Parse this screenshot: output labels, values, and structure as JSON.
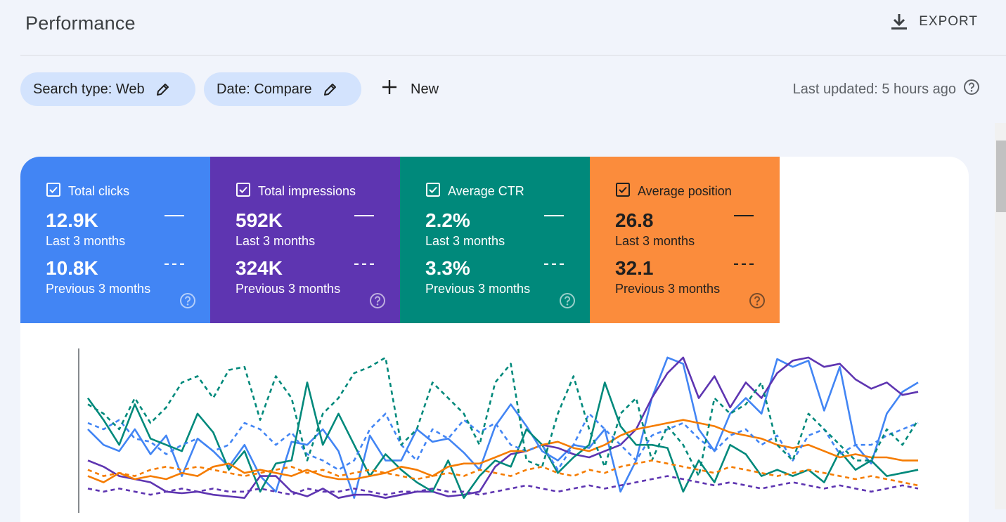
{
  "header": {
    "title": "Performance",
    "export_label": "EXPORT"
  },
  "filters": {
    "search_type": "Search type: Web",
    "date": "Date: Compare",
    "new_label": "New",
    "last_updated": "Last updated: 5 hours ago"
  },
  "metrics": [
    {
      "label": "Total clicks",
      "value": "12.9K",
      "period": "Last 3 months",
      "compare_value": "10.8K",
      "compare_period": "Previous 3 months",
      "color": "#4285f4",
      "checked": true
    },
    {
      "label": "Total impressions",
      "value": "592K",
      "period": "Last 3 months",
      "compare_value": "324K",
      "compare_period": "Previous 3 months",
      "color": "#5e35b1",
      "checked": true
    },
    {
      "label": "Average CTR",
      "value": "2.2%",
      "period": "Last 3 months",
      "compare_value": "3.3%",
      "compare_period": "Previous 3 months",
      "color": "#00897b",
      "checked": true
    },
    {
      "label": "Average position",
      "value": "26.8",
      "period": "Last 3 months",
      "compare_value": "32.1",
      "compare_period": "Previous 3 months",
      "color": "#fb8c3c",
      "checked": true
    }
  ],
  "chart_data": {
    "type": "line",
    "note_units": "relative height 0-1 of visible plot area",
    "x_count": 54,
    "series": [
      {
        "color": "#4285f4",
        "style": "solid",
        "values": [
          0.5,
          0.4,
          0.36,
          0.5,
          0.34,
          0.46,
          0.2,
          0.44,
          0.36,
          0.26,
          0.4,
          0.2,
          0.1,
          0.42,
          0.4,
          0.5,
          0.36,
          0.06,
          0.46,
          0.3,
          0.3,
          0.5,
          0.42,
          0.44,
          0.35,
          0.24,
          0.52,
          0.66,
          0.52,
          0.36,
          0.3,
          0.4,
          0.38,
          0.5,
          0.1,
          0.3,
          0.7,
          0.96,
          0.92,
          0.5,
          0.36,
          0.6,
          0.7,
          0.6,
          0.95,
          0.9,
          0.94,
          0.62,
          0.9,
          0.4,
          0.28,
          0.6,
          0.74,
          0.8
        ]
      },
      {
        "color": "#5e35b1",
        "style": "solid",
        "values": [
          0.3,
          0.26,
          0.2,
          0.18,
          0.16,
          0.1,
          0.09,
          0.1,
          0.08,
          0.07,
          0.06,
          0.2,
          0.2,
          0.1,
          0.07,
          0.12,
          0.06,
          0.08,
          0.08,
          0.06,
          0.08,
          0.1,
          0.1,
          0.07,
          0.08,
          0.1,
          0.26,
          0.34,
          0.36,
          0.4,
          0.38,
          0.34,
          0.32,
          0.36,
          0.4,
          0.5,
          0.7,
          0.86,
          0.96,
          0.7,
          0.84,
          0.64,
          0.8,
          0.7,
          0.86,
          0.94,
          0.96,
          0.9,
          0.92,
          0.82,
          0.76,
          0.8,
          0.72,
          0.74
        ]
      },
      {
        "color": "#00897b",
        "style": "solid",
        "values": [
          0.7,
          0.56,
          0.4,
          0.66,
          0.44,
          0.4,
          0.36,
          0.6,
          0.48,
          0.24,
          0.36,
          0.1,
          0.28,
          0.3,
          0.8,
          0.4,
          0.6,
          0.4,
          0.2,
          0.34,
          0.24,
          0.16,
          0.1,
          0.3,
          0.06,
          0.2,
          0.3,
          0.26,
          0.5,
          0.4,
          0.22,
          0.32,
          0.4,
          0.8,
          0.52,
          0.4,
          0.4,
          0.38,
          0.1,
          0.3,
          0.16,
          0.4,
          0.34,
          0.2,
          0.24,
          0.2,
          0.24,
          0.16,
          0.36,
          0.24,
          0.3,
          0.2,
          0.22,
          0.24
        ]
      },
      {
        "color": "#f57c00",
        "style": "solid",
        "values": [
          0.2,
          0.16,
          0.22,
          0.18,
          0.2,
          0.18,
          0.22,
          0.2,
          0.26,
          0.28,
          0.22,
          0.24,
          0.22,
          0.2,
          0.24,
          0.2,
          0.18,
          0.18,
          0.2,
          0.22,
          0.26,
          0.24,
          0.2,
          0.26,
          0.28,
          0.28,
          0.32,
          0.36,
          0.36,
          0.4,
          0.42,
          0.38,
          0.36,
          0.4,
          0.46,
          0.5,
          0.52,
          0.54,
          0.56,
          0.54,
          0.52,
          0.48,
          0.46,
          0.44,
          0.4,
          0.38,
          0.4,
          0.36,
          0.32,
          0.34,
          0.32,
          0.32,
          0.3,
          0.3
        ]
      },
      {
        "color": "#4285f4",
        "style": "dashed",
        "values": [
          0.54,
          0.5,
          0.56,
          0.44,
          0.42,
          0.34,
          0.4,
          0.44,
          0.36,
          0.4,
          0.54,
          0.5,
          0.4,
          0.48,
          0.34,
          0.3,
          0.24,
          0.3,
          0.5,
          0.6,
          0.4,
          0.3,
          0.5,
          0.44,
          0.56,
          0.48,
          0.54,
          0.4,
          0.36,
          0.4,
          0.24,
          0.4,
          0.6,
          0.5,
          0.4,
          0.3,
          0.46,
          0.5,
          0.54,
          0.44,
          0.36,
          0.46,
          0.5,
          0.4,
          0.46,
          0.3,
          0.46,
          0.5,
          0.34,
          0.4,
          0.4,
          0.46,
          0.5,
          0.54
        ]
      },
      {
        "color": "#00897b",
        "style": "dashed",
        "values": [
          0.66,
          0.6,
          0.5,
          0.7,
          0.54,
          0.64,
          0.8,
          0.84,
          0.7,
          0.88,
          0.9,
          0.56,
          0.84,
          0.7,
          0.3,
          0.6,
          0.7,
          0.86,
          0.9,
          0.96,
          0.4,
          0.5,
          0.8,
          0.7,
          0.6,
          0.4,
          0.8,
          0.92,
          0.3,
          0.26,
          0.6,
          0.84,
          0.5,
          0.26,
          0.6,
          0.7,
          0.3,
          0.52,
          0.4,
          0.2,
          0.7,
          0.6,
          0.66,
          0.8,
          0.4,
          0.3,
          0.6,
          0.5,
          0.4,
          0.3,
          0.3,
          0.5,
          0.4,
          0.56
        ]
      },
      {
        "color": "#f57c00",
        "style": "dashed",
        "values": [
          0.24,
          0.2,
          0.22,
          0.2,
          0.24,
          0.26,
          0.24,
          0.26,
          0.24,
          0.22,
          0.2,
          0.22,
          0.24,
          0.26,
          0.22,
          0.24,
          0.2,
          0.22,
          0.24,
          0.22,
          0.2,
          0.18,
          0.2,
          0.22,
          0.2,
          0.24,
          0.22,
          0.2,
          0.24,
          0.26,
          0.22,
          0.2,
          0.24,
          0.22,
          0.26,
          0.28,
          0.3,
          0.28,
          0.26,
          0.24,
          0.22,
          0.26,
          0.24,
          0.22,
          0.2,
          0.22,
          0.24,
          0.22,
          0.2,
          0.18,
          0.2,
          0.18,
          0.16,
          0.14
        ]
      },
      {
        "color": "#5e35b1",
        "style": "dashed",
        "values": [
          0.12,
          0.1,
          0.12,
          0.1,
          0.08,
          0.1,
          0.12,
          0.1,
          0.12,
          0.1,
          0.1,
          0.12,
          0.1,
          0.08,
          0.12,
          0.1,
          0.1,
          0.12,
          0.1,
          0.08,
          0.1,
          0.1,
          0.12,
          0.1,
          0.1,
          0.08,
          0.1,
          0.12,
          0.14,
          0.12,
          0.1,
          0.12,
          0.14,
          0.12,
          0.14,
          0.16,
          0.18,
          0.2,
          0.18,
          0.16,
          0.14,
          0.16,
          0.14,
          0.12,
          0.14,
          0.16,
          0.14,
          0.12,
          0.14,
          0.12,
          0.1,
          0.12,
          0.14,
          0.12
        ]
      }
    ]
  }
}
